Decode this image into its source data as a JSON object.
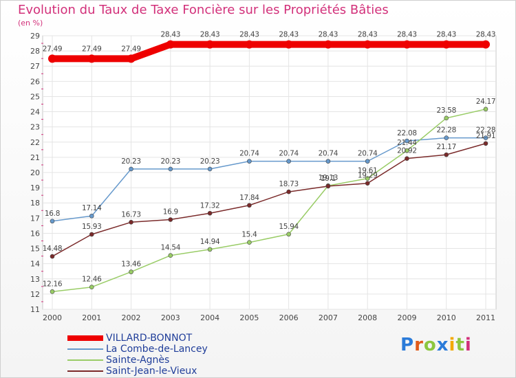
{
  "chart_data": {
    "type": "line",
    "title": "Evolution du Taux de Taxe Foncière sur les Propriétés Bâties",
    "unit_label": "(en %)",
    "categories": [
      "2000",
      "2001",
      "2002",
      "2003",
      "2004",
      "2005",
      "2006",
      "2007",
      "2008",
      "2009",
      "2010",
      "2011"
    ],
    "yticks": [
      "11",
      "12",
      "13",
      "14",
      "15",
      "16",
      "17",
      "18",
      "19",
      "20",
      "21",
      "22",
      "23",
      "24",
      "25",
      "26",
      "27",
      "28",
      "29"
    ],
    "ylim": [
      11,
      29
    ],
    "grid": true,
    "series": [
      {
        "name": "VILLARD-BONNOT",
        "color": "#ee0000",
        "values": [
          27.49,
          27.49,
          27.49,
          28.43,
          28.43,
          28.43,
          28.43,
          28.43,
          28.43,
          28.43,
          28.43,
          28.43
        ],
        "labels": [
          "27.49",
          "27.49",
          "27.49",
          "28.43",
          "28.43",
          "28.43",
          "28.43",
          "28.43",
          "28.43",
          "28.43",
          "28.43",
          "28.43"
        ]
      },
      {
        "name": "La Combe-de-Lancey",
        "color": "#6699cc",
        "values": [
          16.8,
          17.14,
          20.23,
          20.23,
          20.23,
          20.74,
          20.74,
          20.74,
          20.74,
          22.08,
          22.28,
          22.28
        ],
        "labels": [
          "16.8",
          "17.14",
          "20.23",
          "20.23",
          "20.23",
          "20.74",
          "20.74",
          "20.74",
          "20.74",
          "22.08",
          "22.28",
          "22.28"
        ]
      },
      {
        "name": "Sainte-Agnès",
        "color": "#99cc66",
        "values": [
          12.16,
          12.46,
          13.46,
          14.54,
          14.94,
          15.4,
          15.94,
          19.13,
          19.61,
          21.44,
          23.58,
          24.17
        ],
        "labels": [
          "12.16",
          "12.46",
          "13.46",
          "14.54",
          "14.94",
          "15.4",
          "15.94",
          "19.13",
          "19.61",
          "21.44",
          "23.58",
          "24.17"
        ]
      },
      {
        "name": "Saint-Jean-le-Vieux",
        "color": "#7a2a2a",
        "values": [
          14.48,
          15.93,
          16.73,
          16.9,
          17.32,
          17.84,
          18.73,
          19.1,
          19.29,
          20.92,
          21.17,
          21.91
        ],
        "labels": [
          "14.48",
          "15.93",
          "16.73",
          "16.9",
          "17.32",
          "17.84",
          "18.73",
          "19.1",
          "19.29",
          "20.92",
          "21.17",
          "21.91"
        ]
      }
    ]
  },
  "logo": {
    "text": "Proxiti",
    "letters": [
      "P",
      "r",
      "o",
      "x",
      "i",
      "t",
      "i"
    ],
    "colors": [
      "#2b7bd9",
      "#e05a1a",
      "#8cc63f",
      "#2b7bd9",
      "#f2a900",
      "#8cc63f",
      "#d2307a"
    ]
  }
}
